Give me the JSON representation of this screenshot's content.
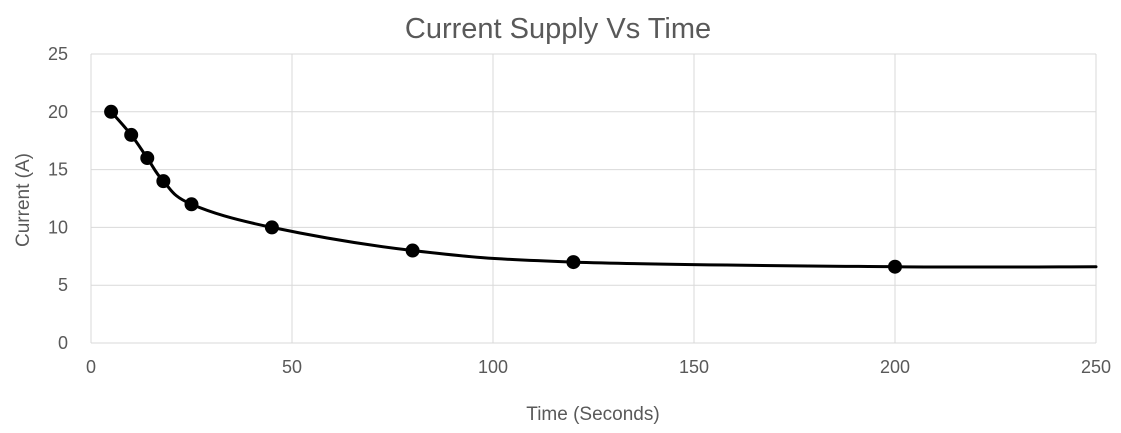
{
  "chart_data": {
    "type": "scatter",
    "title": "Current Supply Vs Time",
    "xlabel": "Time (Seconds)",
    "ylabel": "Current (A)",
    "xlim": [
      0,
      250
    ],
    "ylim": [
      0,
      25
    ],
    "x_ticks": [
      "0",
      "50",
      "100",
      "150",
      "200",
      "250"
    ],
    "y_ticks": [
      "0",
      "5",
      "10",
      "15",
      "20",
      "25"
    ],
    "grid": true,
    "legend": "none",
    "series": [
      {
        "x": [
          5,
          10,
          14,
          18,
          25,
          45,
          80,
          120,
          200
        ],
        "y": [
          20,
          18,
          16,
          14,
          12,
          10,
          8,
          7,
          6.6
        ],
        "trend_end": [
          250,
          6.6
        ]
      }
    ],
    "colors": {
      "line": "#000000",
      "marker": "#000000",
      "grid": "#d9d9d9",
      "text": "#595959"
    }
  }
}
